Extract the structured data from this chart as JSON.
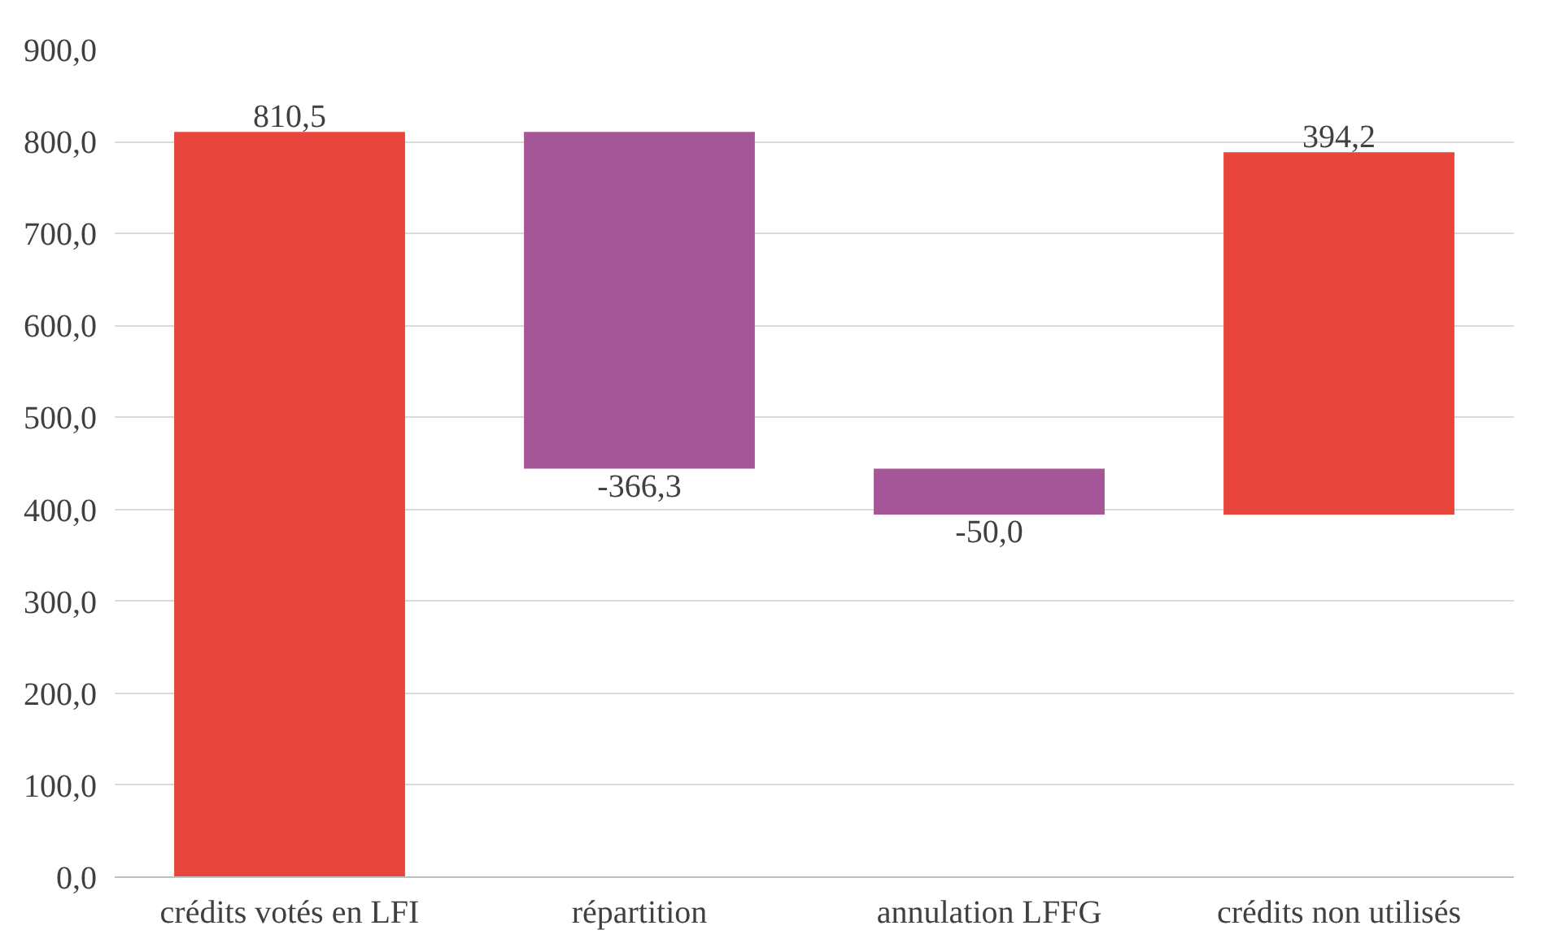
{
  "chart_data": {
    "type": "bar",
    "categories": [
      "crédits votés en LFI",
      "répartition",
      "annulation LFFG",
      "crédits non utilisés"
    ],
    "values": [
      810.5,
      -366.3,
      -50.0,
      394.2
    ],
    "base": [
      0,
      810.5,
      444.2,
      394.2
    ],
    "colors": [
      "#e8453c",
      "#a45698",
      "#a45698",
      "#e8453c"
    ],
    "value_labels": [
      "810,5",
      "-366,3",
      "-50,0",
      "394,2"
    ],
    "ylim": [
      0,
      900
    ],
    "yticks": [
      {
        "value": 0,
        "label": "0,0"
      },
      {
        "value": 100,
        "label": "100,0"
      },
      {
        "value": 200,
        "label": "200,0"
      },
      {
        "value": 300,
        "label": "300,0"
      },
      {
        "value": 400,
        "label": "400,0"
      },
      {
        "value": 500,
        "label": "500,0"
      },
      {
        "value": 600,
        "label": "600,0"
      },
      {
        "value": 700,
        "label": "700,0"
      },
      {
        "value": 800,
        "label": "800,0"
      },
      {
        "value": 900,
        "label": "900,0"
      }
    ],
    "grid": "y"
  }
}
